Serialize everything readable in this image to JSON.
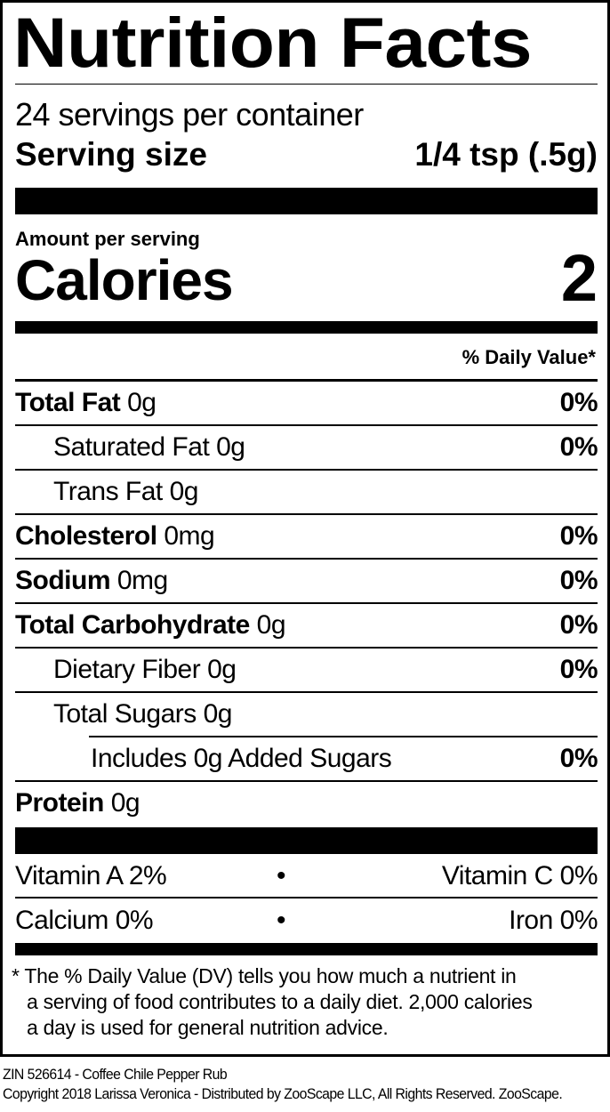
{
  "title": "Nutrition Facts",
  "servings_per_container": "24 servings per container",
  "serving_size_label": "Serving size",
  "serving_size_value": "1/4 tsp (.5g)",
  "amount_per_serving": "Amount per serving",
  "calories_label": "Calories",
  "calories_value": "2",
  "daily_value_header": "% Daily Value*",
  "nutrients": [
    {
      "name": "Total Fat",
      "amount": "0g",
      "dv": "0%"
    },
    {
      "name": "Saturated Fat",
      "amount": "0g",
      "dv": "0%"
    },
    {
      "name": "Trans Fat",
      "amount": "0g",
      "dv": ""
    },
    {
      "name": "Cholesterol",
      "amount": "0mg",
      "dv": "0%"
    },
    {
      "name": "Sodium",
      "amount": "0mg",
      "dv": "0%"
    },
    {
      "name": "Total Carbohydrate",
      "amount": "0g",
      "dv": "0%"
    },
    {
      "name": "Dietary Fiber",
      "amount": "0g",
      "dv": "0%"
    },
    {
      "name": "Total Sugars",
      "amount": "0g",
      "dv": ""
    },
    {
      "name": "Includes 0g Added Sugars",
      "amount": "",
      "dv": "0%"
    },
    {
      "name": "Protein",
      "amount": "0g",
      "dv": ""
    }
  ],
  "vitamins": [
    {
      "left": "Vitamin A 2%",
      "right": "Vitamin C 0%"
    },
    {
      "left": "Calcium 0%",
      "right": "Iron 0%"
    }
  ],
  "bullet": "•",
  "footnote": [
    "* The % Daily Value (DV) tells you how much a nutrient in",
    "a serving of food contributes to a daily diet. 2,000 calories",
    "a day is used for general nutrition advice."
  ],
  "footer": {
    "product": "ZIN 526614 - Coffee Chile Pepper Rub",
    "copyright": "Copyright 2018 Larissa Veronica - Distributed by ZooScape LLC, All Rights Reserved. ZooScape."
  }
}
